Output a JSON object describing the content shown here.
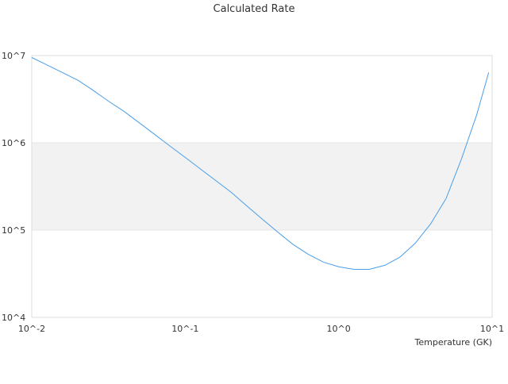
{
  "chart_data": {
    "type": "line",
    "title": "Calculated Rate",
    "xlabel": "Temperature (GK)",
    "ylabel": "",
    "xscale": "log",
    "yscale": "log",
    "xlim": [
      0.01,
      10
    ],
    "ylim": [
      10000,
      10000000
    ],
    "x_tick_labels": [
      "10^-2",
      "10^-1",
      "10^0",
      "10^1"
    ],
    "y_tick_labels": [
      "10^4",
      "10^5",
      "10^6",
      "10^7"
    ],
    "grid": false,
    "alternating_bands": true,
    "line_color": "#4a9ee8",
    "band_color": "#f2f2f2",
    "series": [
      {
        "x": [
          0.01,
          0.0126,
          0.0158,
          0.02,
          0.0251,
          0.0316,
          0.0398,
          0.0501,
          0.0631,
          0.0794,
          0.1,
          0.126,
          0.158,
          0.2,
          0.251,
          0.316,
          0.398,
          0.501,
          0.631,
          0.794,
          1.0,
          1.26,
          1.58,
          2.0,
          2.51,
          3.16,
          3.98,
          5.01,
          6.31,
          7.94,
          9.5
        ],
        "y": [
          9500000,
          7800000,
          6400000,
          5200000,
          4000000,
          3000000,
          2300000,
          1700000,
          1250000,
          920000,
          680000,
          500000,
          370000,
          270000,
          190000,
          135000,
          96000,
          69000,
          53000,
          43000,
          38000,
          35500,
          35500,
          39500,
          49000,
          71000,
          118000,
          230000,
          650000,
          2100000,
          6400000
        ]
      }
    ]
  }
}
